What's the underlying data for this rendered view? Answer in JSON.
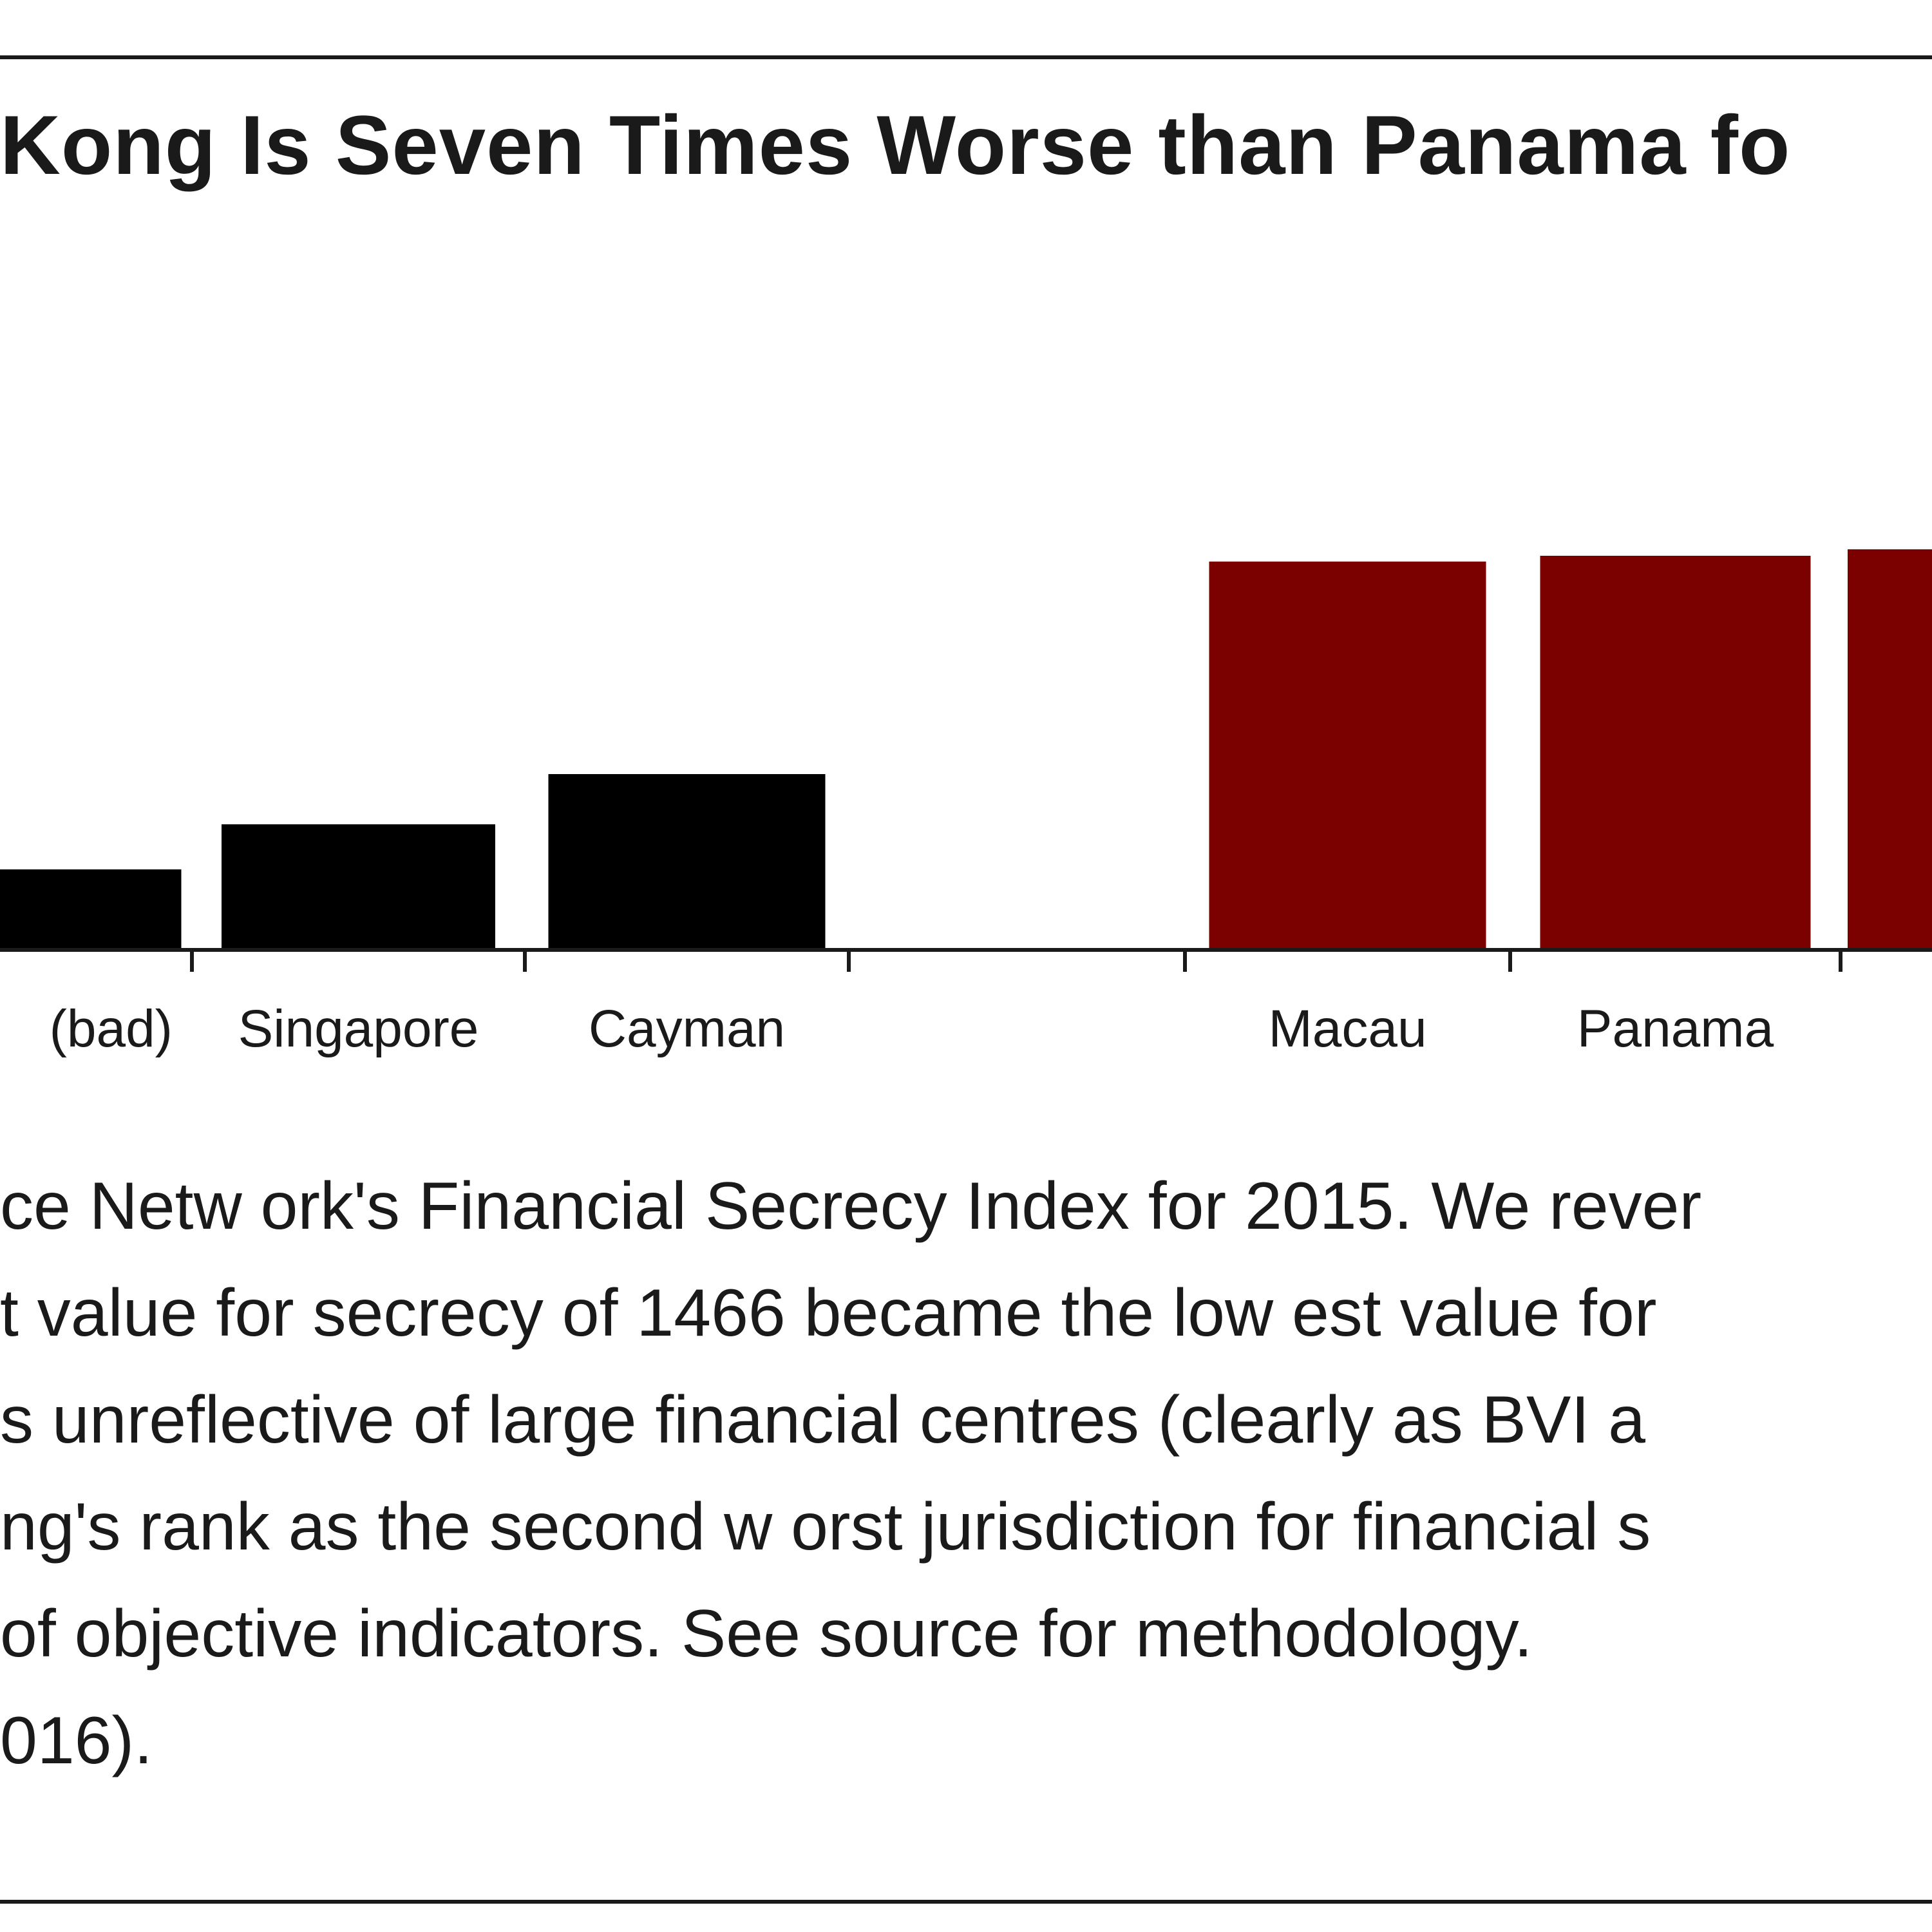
{
  "chart_data": {
    "type": "bar",
    "title": "Kong Is Seven Times Worse than Panama fo",
    "categories": [
      "(bad)",
      "Singapore",
      "Cayman",
      "",
      "Macau",
      "Panama",
      ""
    ],
    "tick_labels": [
      " (bad)",
      "Singapore",
      "Cayman",
      "",
      "Macau",
      "Panama",
      ""
    ],
    "values": [
      125,
      195,
      273,
      null,
      603,
      612,
      622
    ],
    "colors": [
      "#000000",
      "#000000",
      "#000000",
      null,
      "#7b0000",
      "#7b0000",
      "#7b0000"
    ],
    "ylim": [
      0,
      800
    ],
    "grid": false,
    "legend": "none"
  },
  "notes": [
    "ce Netw ork's Financial Secrecy Index for 2015. We rever",
    "t value for secrecy of 1466 became the low est value for",
    "s unreflective of large financial centres (clearly as BVI a",
    "ng's rank as the second w orst jurisdiction for financial s",
    "of objective indicators. See source for methodology.",
    "016)."
  ]
}
